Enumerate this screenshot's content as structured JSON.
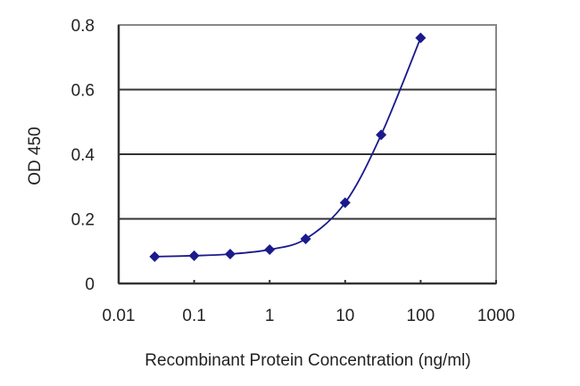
{
  "chart_data": {
    "type": "line",
    "title": "",
    "xlabel": "Recombinant Protein Concentration (ng/ml)",
    "ylabel": "OD 450",
    "x_scale": "log",
    "xlim": [
      0.01,
      1000
    ],
    "ylim": [
      0,
      0.8
    ],
    "x_ticks": [
      "0.01",
      "0.1",
      "1",
      "10",
      "100",
      "1000"
    ],
    "y_ticks": [
      "0",
      "0.2",
      "0.4",
      "0.6",
      "0.8"
    ],
    "grid": {
      "horizontal": true,
      "vertical": false
    },
    "legend": null,
    "series": [
      {
        "name": "OD 450",
        "color": "#1a1a8c",
        "marker": "diamond",
        "x": [
          0.03,
          0.1,
          0.3,
          1,
          3,
          10,
          30,
          100
        ],
        "values": [
          0.083,
          0.086,
          0.091,
          0.105,
          0.138,
          0.25,
          0.46,
          0.76
        ]
      }
    ]
  },
  "colors": {
    "line": "#1a1a8c",
    "grid": "#333333",
    "plot_border": "#888888",
    "axis": "#333333"
  }
}
